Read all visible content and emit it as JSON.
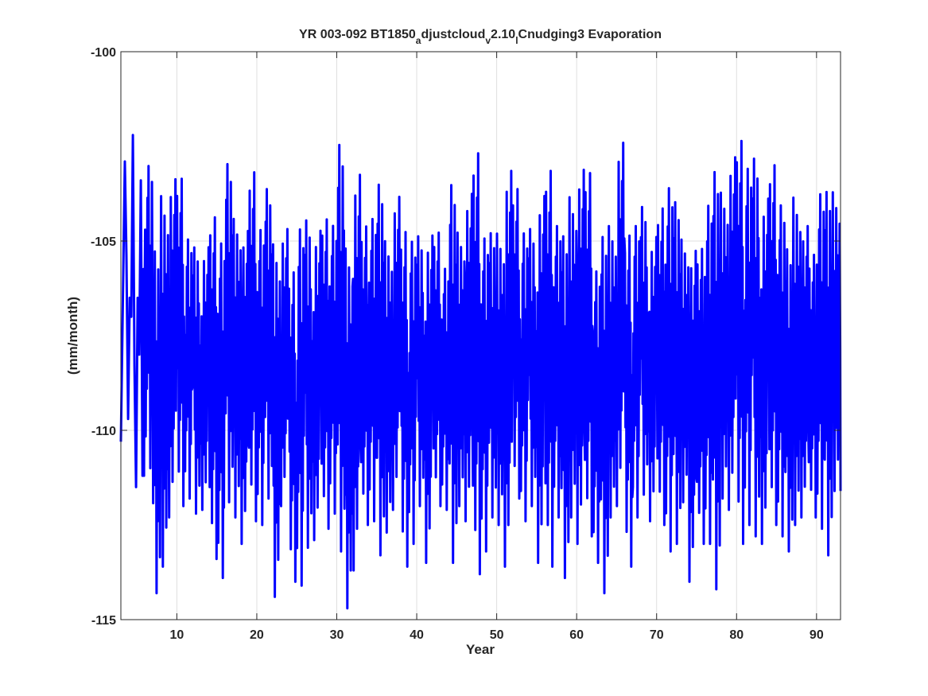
{
  "chart_data": {
    "type": "line",
    "title": {
      "parts": [
        {
          "text": "YR 003-092 BT1850",
          "sub": false
        },
        {
          "text": "a",
          "sub": true
        },
        {
          "text": "djustcloud",
          "sub": false
        },
        {
          "text": "v",
          "sub": true
        },
        {
          "text": "2.10",
          "sub": false
        },
        {
          "text": "l",
          "sub": true
        },
        {
          "text": "Cnudging3 Evaporation",
          "sub": false
        }
      ]
    },
    "xlabel": "Year",
    "ylabel": "(mm/month)",
    "xlim": [
      3,
      93
    ],
    "ylim": [
      -115,
      -100
    ],
    "xticks": [
      10,
      20,
      30,
      40,
      50,
      60,
      70,
      80,
      90
    ],
    "yticks": [
      -115,
      -110,
      -105,
      -100
    ],
    "grid": true,
    "series_color": "#0000ff",
    "series": [
      {
        "monthly_pattern_anchor": {
          "x": [
            3.0,
            3.33,
            3.5,
            3.7,
            3.9,
            4.1,
            4.3,
            4.5,
            4.7,
            4.9,
            5.1,
            5.3,
            5.5,
            5.7
          ],
          "y": [
            -110.3,
            -105.4,
            -102.9,
            -105.4,
            -109.7,
            -106.5,
            -107.0,
            -102.2,
            -108.3,
            -111.5,
            -106.5,
            -108.0,
            -103.4,
            -111.2
          ]
        },
        "annual_extremes": {
          "years": [
            4,
            5,
            6,
            7,
            8,
            9,
            10,
            11,
            12,
            13,
            14,
            15,
            16,
            17,
            18,
            19,
            20,
            21,
            22,
            23,
            24,
            25,
            26,
            27,
            28,
            29,
            30,
            31,
            32,
            33,
            34,
            35,
            36,
            37,
            38,
            39,
            40,
            41,
            42,
            43,
            44,
            45,
            46,
            47,
            48,
            49,
            50,
            51,
            52,
            53,
            54,
            55,
            56,
            57,
            58,
            59,
            60,
            61,
            62,
            63,
            64,
            65,
            66,
            67,
            68,
            69,
            70,
            71,
            72,
            73,
            74,
            75,
            76,
            77,
            78,
            79,
            80,
            81,
            82,
            83,
            84,
            85,
            86,
            87,
            88,
            89,
            90,
            91,
            92,
            93
          ],
          "max": [
            -102.9,
            -102.2,
            -103.4,
            -102.6,
            -104.8,
            -103.3,
            -102.9,
            -102.9,
            -104.6,
            -104.8,
            -104.8,
            -103.9,
            -104.6,
            -102.5,
            -104.0,
            -104.3,
            -102.7,
            -104.3,
            -103.2,
            -104.6,
            -104.3,
            -105.4,
            -104.2,
            -104.0,
            -104.3,
            -104.0,
            -104.2,
            -101.9,
            -104.7,
            -102.7,
            -104.2,
            -104.0,
            -103.0,
            -104.6,
            -103.4,
            -104.3,
            -104.6,
            -104.5,
            -104.4,
            -104.4,
            -105.4,
            -103.0,
            -104.4,
            -103.3,
            -102.1,
            -104.5,
            -104.4,
            -104.4,
            -102.6,
            -103.2,
            -104.4,
            -104.3,
            -103.3,
            -102.6,
            -104.2,
            -104.4,
            -103.4,
            -102.6,
            -102.7,
            -105.4,
            -104.4,
            -104.2,
            -101.9,
            -104.4,
            -104.2,
            -103.7,
            -104.5,
            -103.7,
            -103.1,
            -103.5,
            -104.6,
            -104.8,
            -104.8,
            -103.6,
            -102.6,
            -103.3,
            -102.3,
            -101.8,
            -102.6,
            -102.3,
            -103.4,
            -102.5,
            -103.6,
            -104.8,
            -103.4,
            -104.2,
            -105.0,
            -103.3,
            -103.2,
            -103.3
          ],
          "min": [
            -109.7,
            -111.5,
            -111.2,
            -111.0,
            -114.3,
            -113.6,
            -112.3,
            -112.0,
            -111.8,
            -112.2,
            -112.1,
            -113.4,
            -113.9,
            -111.9,
            -112.3,
            -113.0,
            -112.4,
            -112.5,
            -111.8,
            -114.4,
            -112.0,
            -114.0,
            -114.1,
            -113.1,
            -112.9,
            -112.6,
            -112.2,
            -113.2,
            -114.7,
            -113.7,
            -112.5,
            -112.4,
            -113.3,
            -112.7,
            -112.1,
            -113.6,
            -113.0,
            -112.0,
            -113.5,
            -112.0,
            -112.1,
            -113.5,
            -112.0,
            -112.4,
            -113.8,
            -113.2,
            -112.3,
            -112.5,
            -113.6,
            -111.8,
            -112.4,
            -112.0,
            -113.5,
            -113.6,
            -112.3,
            -113.9,
            -112.3,
            -113.0,
            -112.8,
            -113.5,
            -114.3,
            -112.3,
            -112.0,
            -113.6,
            -112.3,
            -111.7,
            -112.4,
            -112.5,
            -113.2,
            -113.0,
            -111.9,
            -114.0,
            -113.0,
            -113.0,
            -114.2,
            -111.8,
            -112.1,
            -113.0,
            -112.5,
            -112.8,
            -113.0,
            -112.5,
            -112.8,
            -113.2,
            -112.5,
            -112.3,
            -112.3,
            -112.6,
            -113.3,
            -111.6
          ]
        }
      }
    ]
  }
}
